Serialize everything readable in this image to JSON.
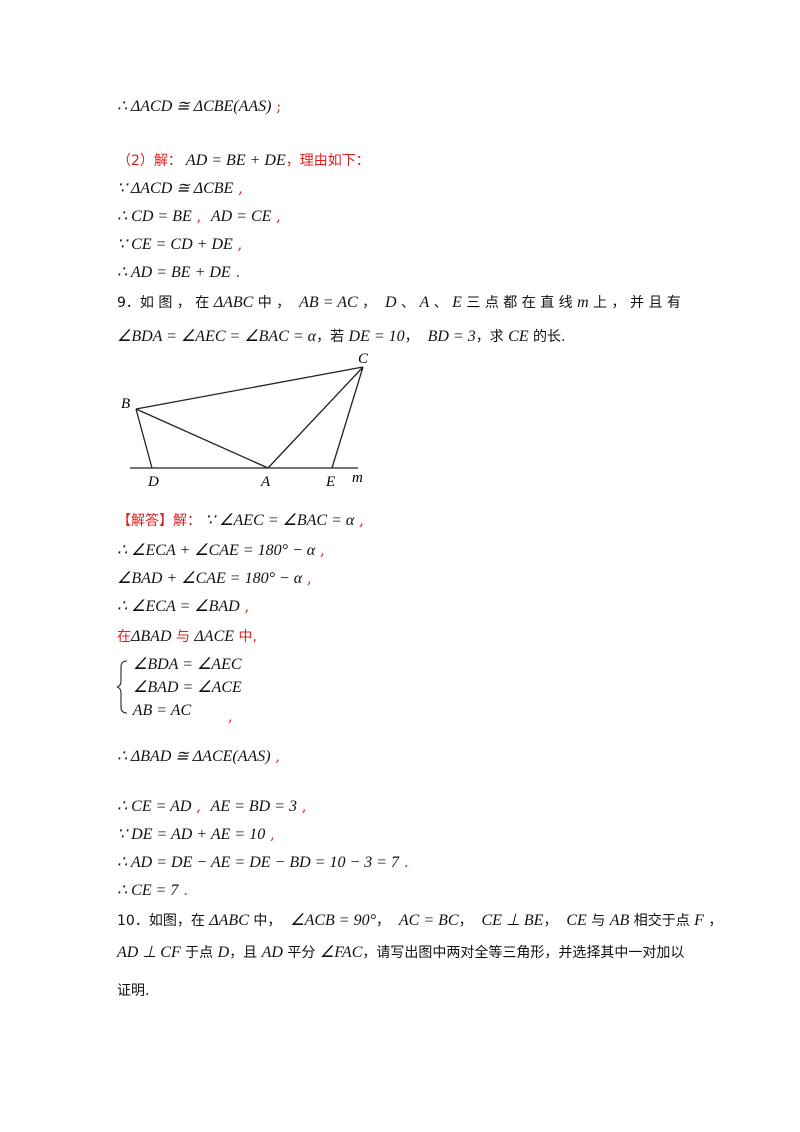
{
  "lines": [
    [
      {
        "t": "∴ ΔACD ≅ ΔCBE(AAS)",
        "k": "m"
      },
      {
        "t": " ;",
        "k": "r"
      }
    ],
    [
      {
        "t": "（2）解：",
        "k": "r cjk"
      },
      {
        "t": " AD = BE + DE",
        "k": "m"
      },
      {
        "t": "，理由如下：",
        "k": "r cjk"
      }
    ],
    [
      {
        "t": "∵ ΔACD ≅ ΔCBE",
        "k": "m"
      },
      {
        "t": " ,",
        "k": "r"
      }
    ],
    [
      {
        "t": "∴ CD = BE",
        "k": "m"
      },
      {
        "t": " ,  ",
        "k": "r"
      },
      {
        "t": "AD = CE",
        "k": "m"
      },
      {
        "t": " ,",
        "k": "r"
      }
    ],
    [
      {
        "t": "∵ CE = CD + DE",
        "k": "m"
      },
      {
        "t": " ,",
        "k": "r"
      }
    ],
    [
      {
        "t": "∴ AD = BE + DE",
        "k": "m"
      },
      {
        "t": " .",
        "k": "r"
      }
    ],
    [
      {
        "t": "9．如 图 ， 在 ",
        "k": "cjk"
      },
      {
        "t": "ΔABC",
        "k": "m"
      },
      {
        "t": " 中 ，  ",
        "k": "cjk"
      },
      {
        "t": "AB = AC",
        "k": "m"
      },
      {
        "t": " ，  ",
        "k": "cjk"
      },
      {
        "t": "D",
        "k": "m"
      },
      {
        "t": " 、 ",
        "k": "cjk"
      },
      {
        "t": "A",
        "k": "m"
      },
      {
        "t": " 、 ",
        "k": "cjk"
      },
      {
        "t": "E",
        "k": "m"
      },
      {
        "t": " 三 点 都 在 直 线 ",
        "k": "cjk"
      },
      {
        "t": "m",
        "k": "m"
      },
      {
        "t": " 上 ， 并 且 有",
        "k": "cjk"
      }
    ],
    [
      {
        "t": "∠BDA = ∠AEC = ∠BAC = α",
        "k": "m"
      },
      {
        "t": "，若 ",
        "k": "cjk"
      },
      {
        "t": "DE = 10",
        "k": "m"
      },
      {
        "t": "，  ",
        "k": "cjk"
      },
      {
        "t": "BD = 3",
        "k": "m"
      },
      {
        "t": "，求 ",
        "k": "cjk"
      },
      {
        "t": "CE",
        "k": "m"
      },
      {
        "t": " 的长.",
        "k": "cjk"
      }
    ],
    [
      {
        "t": "【解答】解：",
        "k": "r cjk"
      },
      {
        "t": " ∵ ∠AEC = ∠BAC = α",
        "k": "m"
      },
      {
        "t": " ,",
        "k": "r"
      }
    ],
    [
      {
        "t": "∴ ∠ECA + ∠CAE = 180° − α",
        "k": "m"
      },
      {
        "t": " ,",
        "k": "r"
      }
    ],
    [
      {
        "t": "∠BAD + ∠CAE = 180° − α",
        "k": "m"
      },
      {
        "t": " ,",
        "k": "r"
      }
    ],
    [
      {
        "t": "∴ ∠ECA = ∠BAD",
        "k": "m"
      },
      {
        "t": " ,",
        "k": "r"
      }
    ],
    [
      {
        "t": "在",
        "k": "r cjk"
      },
      {
        "t": "ΔBAD",
        "k": "m"
      },
      {
        "t": " 与 ",
        "k": "r cjk"
      },
      {
        "t": "ΔACE",
        "k": "m"
      },
      {
        "t": " 中,",
        "k": "r cjk"
      }
    ],
    [
      {
        "t": "  ∠BDA = ∠AEC",
        "k": "m"
      }
    ],
    [
      {
        "t": "  ∠BAD = ∠ACE",
        "k": "m"
      }
    ],
    [
      {
        "t": "  AB = AC",
        "k": "m"
      }
    ],
    [
      {
        "t": "                              ,",
        "k": "r"
      }
    ],
    [
      {
        "t": "∴ ΔBAD ≅ ΔACE(AAS)",
        "k": "m"
      },
      {
        "t": " ,",
        "k": "r"
      }
    ],
    [
      {
        "t": "∴ CE = AD",
        "k": "m"
      },
      {
        "t": " ,  ",
        "k": "r"
      },
      {
        "t": "AE = BD = 3",
        "k": "m"
      },
      {
        "t": " ,",
        "k": "r"
      }
    ],
    [
      {
        "t": "∵ DE = AD + AE = 10",
        "k": "m"
      },
      {
        "t": " ,",
        "k": "r"
      }
    ],
    [
      {
        "t": "∴ AD = DE − AE = DE − BD = 10 − 3 = 7",
        "k": "m"
      },
      {
        "t": " .",
        "k": "r"
      }
    ],
    [
      {
        "t": "∴ CE = 7",
        "k": "m"
      },
      {
        "t": " .",
        "k": "r"
      }
    ],
    [
      {
        "t": "10．如图，在 ",
        "k": "cjk"
      },
      {
        "t": "ΔABC",
        "k": "m"
      },
      {
        "t": " 中，  ",
        "k": "cjk"
      },
      {
        "t": "∠ACB = 90°",
        "k": "m"
      },
      {
        "t": "，  ",
        "k": "cjk"
      },
      {
        "t": "AC = BC",
        "k": "m"
      },
      {
        "t": "，  ",
        "k": "cjk"
      },
      {
        "t": "CE ⊥ BE",
        "k": "m"
      },
      {
        "t": "，  ",
        "k": "cjk"
      },
      {
        "t": "CE",
        "k": "m"
      },
      {
        "t": " 与 ",
        "k": "cjk"
      },
      {
        "t": "AB",
        "k": "m"
      },
      {
        "t": " 相交于点 ",
        "k": "cjk"
      },
      {
        "t": "F",
        "k": "m"
      },
      {
        "t": " ，",
        "k": "cjk"
      }
    ],
    [
      {
        "t": "AD ⊥ CF",
        "k": "m"
      },
      {
        "t": " 于点 ",
        "k": "cjk"
      },
      {
        "t": "D",
        "k": "m"
      },
      {
        "t": "，且 ",
        "k": "cjk"
      },
      {
        "t": "AD",
        "k": "m"
      },
      {
        "t": " 平分 ",
        "k": "cjk"
      },
      {
        "t": "∠FAC",
        "k": "m"
      },
      {
        "t": "，请写出图中两对全等三角形，并选择其中一对加以",
        "k": "cjk"
      }
    ],
    [
      {
        "t": "证明.",
        "k": "cjk"
      }
    ]
  ],
  "figure": {
    "labels": {
      "B": "B",
      "C": "C",
      "D": "D",
      "A": "A",
      "E": "E",
      "m": "m"
    }
  }
}
